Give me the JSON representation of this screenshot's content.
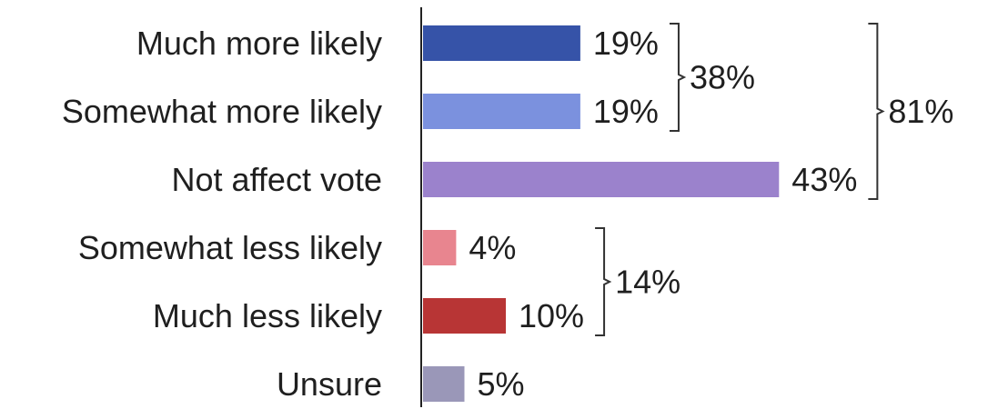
{
  "chart_data": {
    "type": "bar",
    "orientation": "horizontal",
    "categories": [
      "Much more likely",
      "Somewhat more likely",
      "Not affect vote",
      "Somewhat less likely",
      "Much less likely",
      "Unsure"
    ],
    "values": [
      19,
      19,
      43,
      4,
      10,
      5
    ],
    "value_labels": [
      "19%",
      "19%",
      "43%",
      "4%",
      "10%",
      "5%"
    ],
    "colors": [
      "#3653a8",
      "#7b91de",
      "#9b82cc",
      "#e8858f",
      "#b83535",
      "#9a97b8"
    ],
    "xlim": [
      0,
      50
    ],
    "grid": false,
    "groups": [
      {
        "label": "38%",
        "from": 0,
        "to": 1
      },
      {
        "label": "81%",
        "from": 0,
        "to": 2
      },
      {
        "label": "14%",
        "from": 3,
        "to": 4
      }
    ]
  }
}
